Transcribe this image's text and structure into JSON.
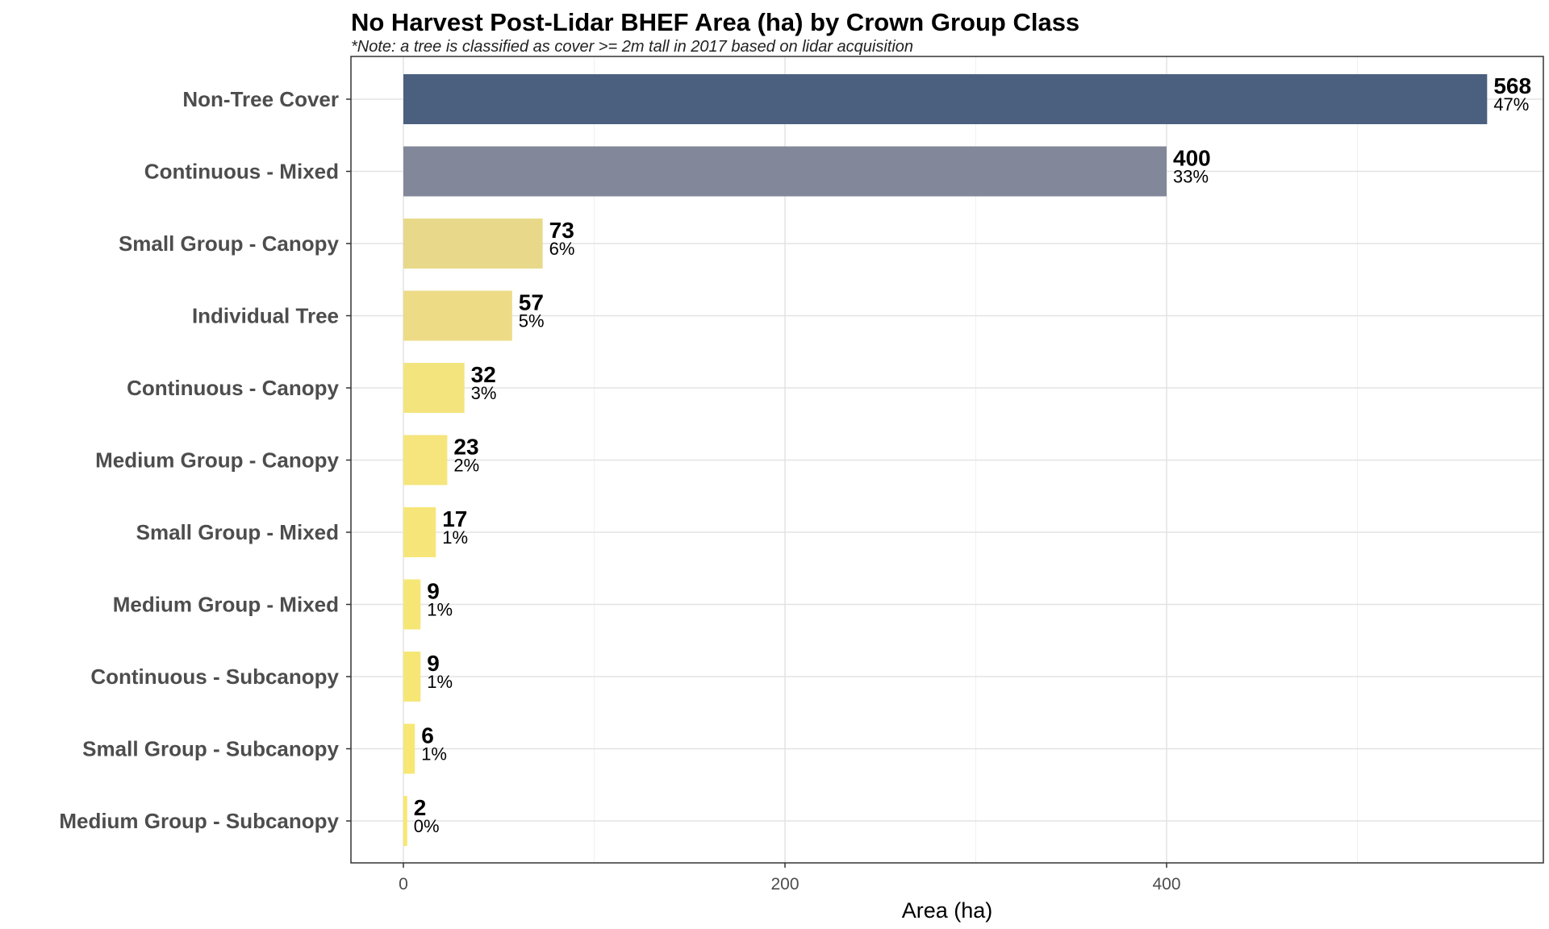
{
  "chart_data": {
    "type": "bar",
    "orientation": "horizontal",
    "title": "No Harvest Post-Lidar BHEF Area (ha) by Crown Group Class",
    "subtitle": "*Note: a tree is classified as cover >= 2m tall in 2017 based on lidar acquisition",
    "xlabel": "Area (ha)",
    "ylabel": "",
    "xlim": [
      -28,
      600
    ],
    "x_ticks": [
      0,
      200,
      400
    ],
    "x_tick_labels": [
      "0",
      "200",
      "400"
    ],
    "grid": true,
    "legend": "none",
    "categories": [
      "Non-Tree Cover",
      "Continuous - Mixed",
      "Small Group - Canopy",
      "Individual Tree",
      "Continuous - Canopy",
      "Medium Group - Canopy",
      "Small Group - Mixed",
      "Medium Group - Mixed",
      "Continuous - Subcanopy",
      "Small Group - Subcanopy",
      "Medium Group - Subcanopy"
    ],
    "values": [
      568,
      400,
      73,
      57,
      32,
      23,
      17,
      9,
      9,
      6,
      2
    ],
    "value_labels": [
      "568",
      "400",
      "73",
      "57",
      "32",
      "23",
      "17",
      "9",
      "9",
      "6",
      "2"
    ],
    "percent_labels": [
      "47%",
      "33%",
      "6%",
      "5%",
      "3%",
      "2%",
      "1%",
      "1%",
      "1%",
      "1%",
      "0%"
    ],
    "bar_colors": [
      "#4b607f",
      "#828899",
      "#e8d98a",
      "#eddb86",
      "#f4e47e",
      "#f5e57c",
      "#f6e679",
      "#f6e676",
      "#f6e676",
      "#f7e774",
      "#f8e770"
    ]
  }
}
